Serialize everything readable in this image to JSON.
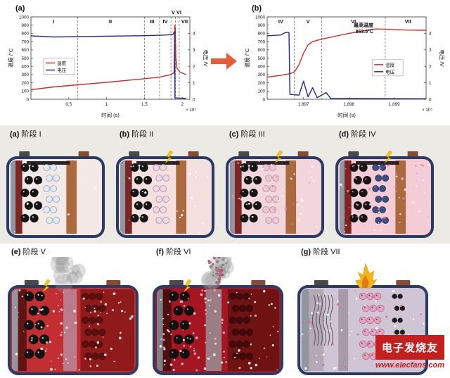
{
  "chart_data": [
    {
      "id": "a",
      "panel_label": "(a)",
      "type": "line",
      "xlabel": "时间 (s)",
      "x_exp": "× 10⁵",
      "ylabel_left": "温度 /°C",
      "ylabel_right": "电压 /V",
      "xlim": [
        0,
        2.1
      ],
      "ylim_left": [
        0,
        1000
      ],
      "ylim_right": [
        0,
        5
      ],
      "xticks": [
        0.5,
        1,
        1.5,
        2
      ],
      "xtick_labels": [
        "0.5",
        "1",
        "1.5",
        "2"
      ],
      "yticks_left": [
        0,
        100,
        200,
        300,
        400,
        500,
        600,
        700,
        800,
        900,
        1000
      ],
      "yticks_right": [
        0,
        1,
        2,
        3,
        4
      ],
      "grid": false,
      "stage_lines": [
        0.62,
        1.5,
        1.7,
        1.85,
        1.91,
        1.96
      ],
      "stages": [
        {
          "label": "I",
          "x": 0.3,
          "above": false
        },
        {
          "label": "II",
          "x": 1.05,
          "above": false
        },
        {
          "label": "III",
          "x": 1.6,
          "above": false
        },
        {
          "label": "IV",
          "x": 1.775,
          "above": false
        },
        {
          "label": "V",
          "x": 1.88,
          "above": true
        },
        {
          "label": "VI",
          "x": 1.955,
          "above": true
        },
        {
          "label": "VII",
          "x": 2.03,
          "above": false
        }
      ],
      "legend": {
        "x": 0.08,
        "y": 0.5
      },
      "series": [
        {
          "name": "温度",
          "axis": "left",
          "color": "#d42a2a",
          "points": [
            [
              0,
              115
            ],
            [
              0.3,
              150
            ],
            [
              0.62,
              175
            ],
            [
              1.0,
              205
            ],
            [
              1.5,
              250
            ],
            [
              1.7,
              268
            ],
            [
              1.85,
              298
            ],
            [
              1.893,
              325
            ],
            [
              1.9,
              895
            ],
            [
              1.908,
              860
            ],
            [
              1.915,
              500
            ],
            [
              1.93,
              375
            ],
            [
              1.97,
              330
            ],
            [
              2.05,
              300
            ]
          ]
        },
        {
          "name": "电压",
          "axis": "right",
          "color": "#1f2d8a",
          "points": [
            [
              0,
              3.85
            ],
            [
              0.3,
              3.78
            ],
            [
              0.9,
              3.82
            ],
            [
              1.5,
              3.86
            ],
            [
              1.8,
              3.9
            ],
            [
              1.88,
              3.95
            ],
            [
              1.895,
              4.1
            ],
            [
              1.901,
              4.1
            ],
            [
              1.903,
              0.08
            ],
            [
              2.05,
              0.05
            ]
          ]
        }
      ]
    },
    {
      "id": "b",
      "panel_label": "(b)",
      "type": "line",
      "xlabel": "时间 (s)",
      "x_exp": "× 10⁵",
      "ylabel_left": "温度 /°C",
      "ylabel_right": "电压 /V",
      "xlim": [
        1.8962,
        1.8997
      ],
      "ylim_left": [
        0,
        1000
      ],
      "ylim_right": [
        0,
        5
      ],
      "xticks": [
        1.897,
        1.898,
        1.899
      ],
      "xtick_labels": [
        "1.897",
        "1.898",
        "1.899"
      ],
      "yticks_left": [
        0,
        100,
        200,
        300,
        400,
        500,
        600,
        700,
        800,
        900,
        1000
      ],
      "yticks_right": [
        0,
        1,
        2,
        3,
        4
      ],
      "grid": false,
      "stage_lines": [
        1.8968,
        1.8974,
        1.8988
      ],
      "stages": [
        {
          "label": "IV",
          "x": 1.8965,
          "above": false
        },
        {
          "label": "V",
          "x": 1.8971,
          "above": false
        },
        {
          "label": "VI",
          "x": 1.8981,
          "above": false
        },
        {
          "label": "VII",
          "x": 1.8993,
          "above": false
        }
      ],
      "annotation": {
        "lines": [
          "最高温度",
          "853.5°C"
        ],
        "x": 1.8986,
        "y": 853.5
      },
      "legend": {
        "x": 0.66,
        "y": 0.52
      },
      "series": [
        {
          "name": "温度",
          "axis": "left",
          "color": "#d42a2a",
          "points": [
            [
              1.8962,
              270
            ],
            [
              1.8965,
              290
            ],
            [
              1.8967,
              310
            ],
            [
              1.8968,
              330
            ],
            [
              1.8969,
              420
            ],
            [
              1.897,
              560
            ],
            [
              1.8971,
              660
            ],
            [
              1.8972,
              700
            ],
            [
              1.8974,
              730
            ],
            [
              1.8977,
              765
            ],
            [
              1.898,
              800
            ],
            [
              1.8983,
              828
            ],
            [
              1.8986,
              853.5
            ],
            [
              1.8989,
              848
            ],
            [
              1.8993,
              840
            ],
            [
              1.8997,
              838
            ]
          ]
        },
        {
          "name": "电压",
          "axis": "right",
          "color": "#1f2d8a",
          "points": [
            [
              1.8962,
              3.85
            ],
            [
              1.8965,
              3.9
            ],
            [
              1.8966,
              4.05
            ],
            [
              1.89668,
              4.05
            ],
            [
              1.8967,
              0.3
            ],
            [
              1.8969,
              0.25
            ],
            [
              1.897,
              1.1
            ],
            [
              1.8971,
              0.15
            ],
            [
              1.8972,
              0.7
            ],
            [
              1.8973,
              0.1
            ],
            [
              1.8975,
              0.4
            ],
            [
              1.8976,
              0.05
            ],
            [
              1.8997,
              0.03
            ]
          ]
        }
      ]
    }
  ],
  "arrow": {
    "color": "#e85c38"
  },
  "panels": [
    {
      "letter": "(a)",
      "caption": "阶段 I",
      "config": {
        "headroom": 26,
        "body": "#f5e9e8",
        "wall": "#2c3a66",
        "terminals": [
          {
            "x": 0.12,
            "color": "#4a4a4a"
          },
          {
            "x": 0.74,
            "color": "#8a4a2c"
          }
        ],
        "strips": [
          {
            "x": 0,
            "w": 0.055,
            "fill": "#9097a0"
          },
          {
            "x": 0.055,
            "w": 0.075,
            "fill": "#7c2522"
          },
          {
            "x": 0.62,
            "w": 0.115,
            "fill": "#aa6a3e"
          }
        ],
        "topbar": "#26262a",
        "clusters": [
          {
            "x": 0.16,
            "cols": 2,
            "rows": 5,
            "r": 6,
            "fill": "#151515",
            "speckle": "#cfcfcf"
          },
          {
            "x": 0.4,
            "cols": 2,
            "rows": 6,
            "r": 4.5,
            "fill": "#e2ebf3",
            "stroke": "#8fa3bd"
          }
        ],
        "dots": [
          {
            "n": 10,
            "color": "#ffffff",
            "r": 1
          }
        ]
      }
    },
    {
      "letter": "(b)",
      "caption": "阶段 II",
      "config": {
        "headroom": 26,
        "body": "#f5e0e0",
        "wall": "#2c3a66",
        "terminals": [
          {
            "x": 0.12,
            "color": "#4a4a4a"
          },
          {
            "x": 0.74,
            "color": "#8a4a2c"
          }
        ],
        "strips": [
          {
            "x": 0,
            "w": 0.055,
            "fill": "#9097a0"
          },
          {
            "x": 0.055,
            "w": 0.075,
            "fill": "#7c2522"
          },
          {
            "x": 0.62,
            "w": 0.115,
            "fill": "#aa6a3e"
          }
        ],
        "topbar": "#26262a",
        "spark": true,
        "sparkX": 0.55,
        "clusters": [
          {
            "x": 0.16,
            "cols": 2,
            "rows": 5,
            "r": 6,
            "fill": "#151515",
            "speckle": "#cfcfcf"
          },
          {
            "x": 0.4,
            "cols": 2,
            "rows": 6,
            "r": 4.5,
            "fill": "#ecd9e4",
            "stroke": "#b58aa6"
          }
        ],
        "dots": [
          {
            "n": 26,
            "color": "#ffffff",
            "r": 1
          }
        ]
      }
    },
    {
      "letter": "(c)",
      "caption": "阶段 III",
      "config": {
        "headroom": 26,
        "body": "#f3d6dc",
        "wall": "#2c3a66",
        "terminals": [
          {
            "x": 0.12,
            "color": "#4a4a4a"
          },
          {
            "x": 0.74,
            "color": "#8a4a2c"
          }
        ],
        "strips": [
          {
            "x": 0,
            "w": 0.055,
            "fill": "#9097a0"
          },
          {
            "x": 0.055,
            "w": 0.075,
            "fill": "#7c2522"
          },
          {
            "x": 0.62,
            "w": 0.115,
            "fill": "#aa6a3e"
          }
        ],
        "topbar": "#26262a",
        "spark": true,
        "sparkX": 0.55,
        "clusters": [
          {
            "x": 0.16,
            "cols": 2,
            "rows": 5,
            "r": 6,
            "fill": "#151515",
            "speckle": "#cfcfcf"
          },
          {
            "x": 0.4,
            "cols": 2,
            "rows": 6,
            "r": 4.5,
            "fill": "#ecc8d4",
            "stroke": "#bd86a0"
          }
        ],
        "dots": [
          {
            "n": 34,
            "color": "#ffffff",
            "r": 1
          },
          {
            "n": 12,
            "color": "#e87ca0",
            "r": 1
          }
        ]
      }
    },
    {
      "letter": "(d)",
      "caption": "阶段 IV",
      "config": {
        "headroom": 26,
        "body": "#f3ccd6",
        "wall": "#2c3a66",
        "terminals": [
          {
            "x": 0.12,
            "color": "#4a4a4a"
          },
          {
            "x": 0.74,
            "color": "#8a4a2c"
          }
        ],
        "strips": [
          {
            "x": 0,
            "w": 0.055,
            "fill": "#9097a0"
          },
          {
            "x": 0.055,
            "w": 0.075,
            "fill": "#7c2522"
          },
          {
            "x": 0.62,
            "w": 0.115,
            "fill": "#aa6a3e"
          }
        ],
        "topbar": "#26262a",
        "spark": true,
        "sparkX": 0.55,
        "clusters": [
          {
            "x": 0.16,
            "cols": 2,
            "rows": 5,
            "r": 6,
            "fill": "#151515",
            "speckle": "#e87ca0"
          },
          {
            "x": 0.4,
            "cols": 2,
            "rows": 6,
            "r": 4.5,
            "fill": "#3d4e80",
            "stroke": "#27335a"
          }
        ],
        "dots": [
          {
            "n": 26,
            "color": "#ffffff",
            "r": 1
          },
          {
            "n": 30,
            "color": "#e87ca0",
            "r": 1
          }
        ]
      }
    },
    {
      "letter": "(e)",
      "caption": "阶段 V",
      "config": {
        "headroom": 42,
        "body": "#c22f33",
        "wall": "#2c3a66",
        "terminals": [
          {
            "x": 0.12,
            "color": "#4a4a4a"
          },
          {
            "x": 0.76,
            "color": "#8a4a2c"
          }
        ],
        "strips": [
          {
            "x": 0,
            "w": 0.05,
            "fill": "#9097a0"
          },
          {
            "x": 0.05,
            "w": 0.07,
            "fill": "#611414"
          },
          {
            "x": 0.56,
            "w": 0.44,
            "fill": "#8e1a1a"
          }
        ],
        "vent": {
          "x": 0.42,
          "w": 0.11,
          "fill": "#b98a9c"
        },
        "clusters": [
          {
            "x": 0.14,
            "cols": 2,
            "rows": 5,
            "r": 7,
            "fill": "#121212",
            "speckle": "#e0e0e0"
          },
          {
            "x": 0.6,
            "cols": 3,
            "rows": 6,
            "r": 4.5,
            "fill": "#5c1010",
            "stroke": "#3c0808"
          }
        ],
        "dots": [
          {
            "n": 60,
            "color": "#ffffff",
            "r": 1.2
          },
          {
            "n": 18,
            "color": "#f0a0b8",
            "r": 1.2
          }
        ],
        "smoke": {
          "x": 0.47
        },
        "spark": true,
        "sparkX": 0.3
      }
    },
    {
      "letter": "(f)",
      "caption": "阶段 VI",
      "config": {
        "headroom": 42,
        "body": "#a61622",
        "wall": "#2c3a66",
        "terminals": [
          {
            "x": 0.12,
            "color": "#4a4a4a"
          },
          {
            "x": 0.76,
            "color": "#8a4a2c"
          }
        ],
        "strips": [
          {
            "x": 0,
            "w": 0.05,
            "fill": "#7d8187"
          },
          {
            "x": 0.05,
            "w": 0.07,
            "fill": "#4f0f0f"
          },
          {
            "x": 0.58,
            "w": 0.42,
            "fill": "#6e1212"
          }
        ],
        "vent": {
          "x": 0.4,
          "w": 0.13,
          "fill": "#9a8f98"
        },
        "clusters": [
          {
            "x": 0.14,
            "cols": 2,
            "rows": 5,
            "r": 7,
            "fill": "#101010",
            "speckle": "#dd8877"
          },
          {
            "x": 0.62,
            "cols": 3,
            "rows": 6,
            "r": 4.5,
            "fill": "#420b0b",
            "stroke": "#2c0606"
          }
        ],
        "dots": [
          {
            "n": 70,
            "color": "#ffffff",
            "r": 1.2
          },
          {
            "n": 26,
            "color": "#f0a0b8",
            "r": 1.2
          }
        ],
        "smoke": {
          "x": 0.5
        },
        "burst": true,
        "spark": true,
        "sparkX": 0.27
      }
    },
    {
      "letter": "(g)",
      "caption": "阶段 VII",
      "config": {
        "headroom": 42,
        "body": "#cfc5d4",
        "wall": "#2c3a66",
        "terminals": [
          {
            "x": 0.12,
            "color": "#4a4a4a"
          },
          {
            "x": 0.76,
            "color": "#8a4a2c"
          }
        ],
        "strips": [
          {
            "x": 0,
            "w": 0.06,
            "fill": "#9097a0"
          },
          {
            "x": 0.06,
            "w": 0.12,
            "fill": "#b4a9b4"
          },
          {
            "x": 0.3,
            "w": 0.08,
            "fill": "#a89aa8"
          }
        ],
        "squiggles": true,
        "clusters": [
          {
            "x": 0.5,
            "cols": 3,
            "rows": 6,
            "r": 4.8,
            "fill": "#e7a2bd",
            "stroke": "#b06c8c",
            "speckle": "#7c3a56"
          },
          {
            "x": 0.76,
            "cols": 2,
            "rows": 6,
            "r": 3.6,
            "fill": "#1c1c1c"
          }
        ],
        "dots": [
          {
            "n": 40,
            "color": "#ffffff",
            "r": 1
          },
          {
            "n": 24,
            "color": "#d86a90",
            "r": 1
          }
        ],
        "flame": true
      }
    }
  ],
  "watermark": {
    "logo": "电子发烧友",
    "url": "www.elecfans.com"
  }
}
